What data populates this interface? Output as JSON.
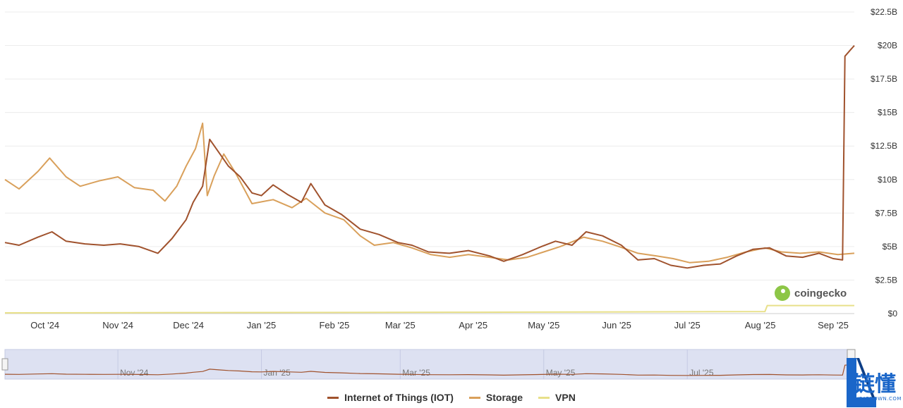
{
  "chart_data": {
    "type": "line",
    "x_ticks": [
      "Oct '24",
      "Nov '24",
      "Dec '24",
      "Jan '25",
      "Feb '25",
      "Mar '25",
      "Apr '25",
      "May '25",
      "Jun '25",
      "Jul '25",
      "Aug '25",
      "Sep '25"
    ],
    "y_ticks": [
      "$22.5B",
      "$20B",
      "$17.5B",
      "$15B",
      "$12.5B",
      "$10B",
      "$7.5B",
      "$5B",
      "$2.5B",
      "$0"
    ],
    "ylim": [
      0,
      22.5
    ],
    "y_unit": "USD billions",
    "grid": true,
    "legend_position": "bottom-center",
    "x_start": "2024-09-14",
    "x_end": "2025-09-10",
    "series": [
      {
        "name": "Internet of Things (IOT)",
        "color": "#a0522d",
        "points": [
          [
            "2024-09-14",
            5.3
          ],
          [
            "2024-09-20",
            5.1
          ],
          [
            "2024-09-28",
            5.7
          ],
          [
            "2024-10-04",
            6.1
          ],
          [
            "2024-10-10",
            5.4
          ],
          [
            "2024-10-18",
            5.2
          ],
          [
            "2024-10-26",
            5.1
          ],
          [
            "2024-11-02",
            5.2
          ],
          [
            "2024-11-10",
            5.0
          ],
          [
            "2024-11-18",
            4.5
          ],
          [
            "2024-11-24",
            5.6
          ],
          [
            "2024-11-30",
            7.0
          ],
          [
            "2024-12-03",
            8.3
          ],
          [
            "2024-12-07",
            9.5
          ],
          [
            "2024-12-10",
            13.0
          ],
          [
            "2024-12-14",
            12.0
          ],
          [
            "2024-12-18",
            11.0
          ],
          [
            "2024-12-23",
            10.2
          ],
          [
            "2024-12-28",
            9.0
          ],
          [
            "2025-01-01",
            8.8
          ],
          [
            "2025-01-06",
            9.6
          ],
          [
            "2025-01-12",
            8.9
          ],
          [
            "2025-01-18",
            8.3
          ],
          [
            "2025-01-22",
            9.7
          ],
          [
            "2025-01-28",
            8.1
          ],
          [
            "2025-02-04",
            7.4
          ],
          [
            "2025-02-12",
            6.3
          ],
          [
            "2025-02-20",
            5.9
          ],
          [
            "2025-02-28",
            5.3
          ],
          [
            "2025-03-06",
            5.1
          ],
          [
            "2025-03-13",
            4.6
          ],
          [
            "2025-03-22",
            4.5
          ],
          [
            "2025-03-30",
            4.7
          ],
          [
            "2025-04-08",
            4.3
          ],
          [
            "2025-04-14",
            3.9
          ],
          [
            "2025-04-22",
            4.4
          ],
          [
            "2025-04-30",
            5.0
          ],
          [
            "2025-05-06",
            5.4
          ],
          [
            "2025-05-13",
            5.1
          ],
          [
            "2025-05-19",
            6.1
          ],
          [
            "2025-05-26",
            5.8
          ],
          [
            "2025-06-03",
            5.1
          ],
          [
            "2025-06-10",
            4.0
          ],
          [
            "2025-06-17",
            4.1
          ],
          [
            "2025-06-24",
            3.6
          ],
          [
            "2025-07-01",
            3.4
          ],
          [
            "2025-07-08",
            3.6
          ],
          [
            "2025-07-15",
            3.7
          ],
          [
            "2025-07-22",
            4.3
          ],
          [
            "2025-07-29",
            4.8
          ],
          [
            "2025-08-05",
            4.9
          ],
          [
            "2025-08-12",
            4.3
          ],
          [
            "2025-08-19",
            4.2
          ],
          [
            "2025-08-26",
            4.5
          ],
          [
            "2025-09-01",
            4.1
          ],
          [
            "2025-09-05",
            4.0
          ],
          [
            "2025-09-06",
            19.2
          ],
          [
            "2025-09-08",
            19.6
          ],
          [
            "2025-09-10",
            20.0
          ]
        ]
      },
      {
        "name": "Storage",
        "color": "#d9a05b",
        "points": [
          [
            "2024-09-14",
            10.0
          ],
          [
            "2024-09-20",
            9.3
          ],
          [
            "2024-09-28",
            10.6
          ],
          [
            "2024-10-03",
            11.6
          ],
          [
            "2024-10-10",
            10.2
          ],
          [
            "2024-10-16",
            9.5
          ],
          [
            "2024-10-24",
            9.9
          ],
          [
            "2024-11-01",
            10.2
          ],
          [
            "2024-11-08",
            9.4
          ],
          [
            "2024-11-16",
            9.2
          ],
          [
            "2024-11-21",
            8.4
          ],
          [
            "2024-11-26",
            9.5
          ],
          [
            "2024-11-30",
            11.0
          ],
          [
            "2024-12-04",
            12.3
          ],
          [
            "2024-12-07",
            14.2
          ],
          [
            "2024-12-09",
            8.8
          ],
          [
            "2024-12-12",
            10.3
          ],
          [
            "2024-12-16",
            11.9
          ],
          [
            "2024-12-21",
            10.5
          ],
          [
            "2024-12-28",
            8.2
          ],
          [
            "2025-01-06",
            8.5
          ],
          [
            "2025-01-14",
            7.9
          ],
          [
            "2025-01-20",
            8.6
          ],
          [
            "2025-01-28",
            7.5
          ],
          [
            "2025-02-05",
            7.0
          ],
          [
            "2025-02-12",
            5.8
          ],
          [
            "2025-02-18",
            5.1
          ],
          [
            "2025-02-26",
            5.3
          ],
          [
            "2025-03-06",
            4.9
          ],
          [
            "2025-03-14",
            4.4
          ],
          [
            "2025-03-22",
            4.2
          ],
          [
            "2025-03-30",
            4.4
          ],
          [
            "2025-04-08",
            4.2
          ],
          [
            "2025-04-16",
            4.0
          ],
          [
            "2025-04-24",
            4.2
          ],
          [
            "2025-05-01",
            4.6
          ],
          [
            "2025-05-08",
            5.0
          ],
          [
            "2025-05-18",
            5.7
          ],
          [
            "2025-05-26",
            5.4
          ],
          [
            "2025-06-02",
            5.0
          ],
          [
            "2025-06-10",
            4.5
          ],
          [
            "2025-06-18",
            4.3
          ],
          [
            "2025-06-25",
            4.1
          ],
          [
            "2025-07-02",
            3.8
          ],
          [
            "2025-07-10",
            3.9
          ],
          [
            "2025-07-18",
            4.2
          ],
          [
            "2025-07-26",
            4.6
          ],
          [
            "2025-08-03",
            4.9
          ],
          [
            "2025-08-10",
            4.6
          ],
          [
            "2025-08-18",
            4.5
          ],
          [
            "2025-08-26",
            4.6
          ],
          [
            "2025-09-03",
            4.4
          ],
          [
            "2025-09-10",
            4.5
          ]
        ]
      },
      {
        "name": "VPN",
        "color": "#e8e08a",
        "points": [
          [
            "2024-09-14",
            0.05
          ],
          [
            "2025-04-01",
            0.1
          ],
          [
            "2025-08-03",
            0.15
          ],
          [
            "2025-08-04",
            0.6
          ],
          [
            "2025-09-10",
            0.6
          ]
        ]
      }
    ],
    "navigator": {
      "x_ticks": [
        "Nov '24",
        "Jan '25",
        "Mar '25",
        "May '25",
        "Jul '25"
      ]
    }
  },
  "watermark": {
    "text": "coingecko",
    "logo_icon": "gecko-icon"
  },
  "brand": {
    "chinese": "链懂",
    "sub": "NEATDOWN.COM",
    "color": "#1a66c9"
  }
}
